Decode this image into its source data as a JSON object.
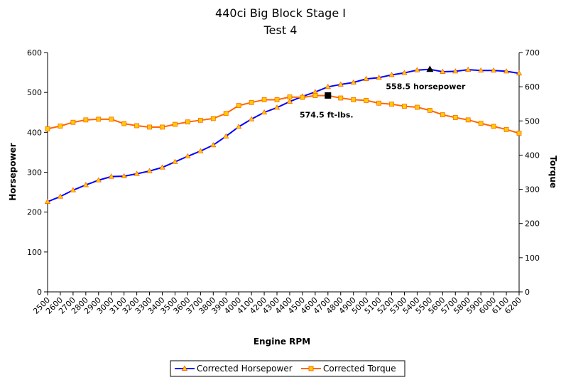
{
  "chart_data": {
    "type": "line",
    "title": "440ci Big Block Stage I",
    "subtitle": "Test 4",
    "xlabel": "Engine RPM",
    "ylabel_left": "Horsepower",
    "ylabel_right": "Torque",
    "ylim_left": [
      0,
      600
    ],
    "ylim_right": [
      0,
      700
    ],
    "yticks_left": [
      0,
      100,
      200,
      300,
      400,
      500,
      600
    ],
    "yticks_right": [
      0,
      100,
      200,
      300,
      400,
      500,
      600,
      700
    ],
    "grid": false,
    "legend_position": "bottom",
    "categories": [
      "2500",
      "2600",
      "2700",
      "2800",
      "2900",
      "3000",
      "3100",
      "3200",
      "3300",
      "3400",
      "3500",
      "3600",
      "3700",
      "3800",
      "3900",
      "4000",
      "4100",
      "4200",
      "4300",
      "4400",
      "4500",
      "4600",
      "4700",
      "4800",
      "4900",
      "5000",
      "5100",
      "5200",
      "5300",
      "5400",
      "5500",
      "5600",
      "5700",
      "5800",
      "5900",
      "6000",
      "6100",
      "6200"
    ],
    "series": [
      {
        "name": "Corrected Horsepower",
        "axis": "left",
        "color": "#0000ff",
        "marker_color": "#ffcc00",
        "values": [
          226,
          239,
          255,
          268,
          280,
          289,
          290,
          296,
          303,
          312,
          326,
          340,
          353,
          368,
          390,
          414,
          433,
          450,
          462,
          477,
          490,
          501,
          514,
          520,
          525,
          534,
          537,
          544,
          549,
          556,
          558,
          552,
          553,
          557,
          555,
          555,
          553,
          548
        ]
      },
      {
        "name": "Corrected Torque",
        "axis": "right",
        "color": "#ff6600",
        "marker_color": "#ffcc00",
        "values": [
          477,
          485,
          496,
          503,
          505,
          505,
          492,
          486,
          482,
          482,
          490,
          497,
          502,
          507,
          522,
          545,
          554,
          562,
          562,
          570,
          569,
          574,
          574,
          567,
          562,
          560,
          552,
          549,
          543,
          540,
          531,
          518,
          510,
          503,
          493,
          484,
          475,
          464
        ]
      }
    ],
    "annotations": [
      {
        "text": "558.5 horsepower",
        "series": 0,
        "x": "5500",
        "y": 558.5,
        "marker": "triangle",
        "marker_color": "#000000"
      },
      {
        "text": "574.5 ft-lbs.",
        "series": 1,
        "x": "4700",
        "y": 574.5,
        "marker": "square",
        "marker_color": "#000000"
      }
    ]
  }
}
